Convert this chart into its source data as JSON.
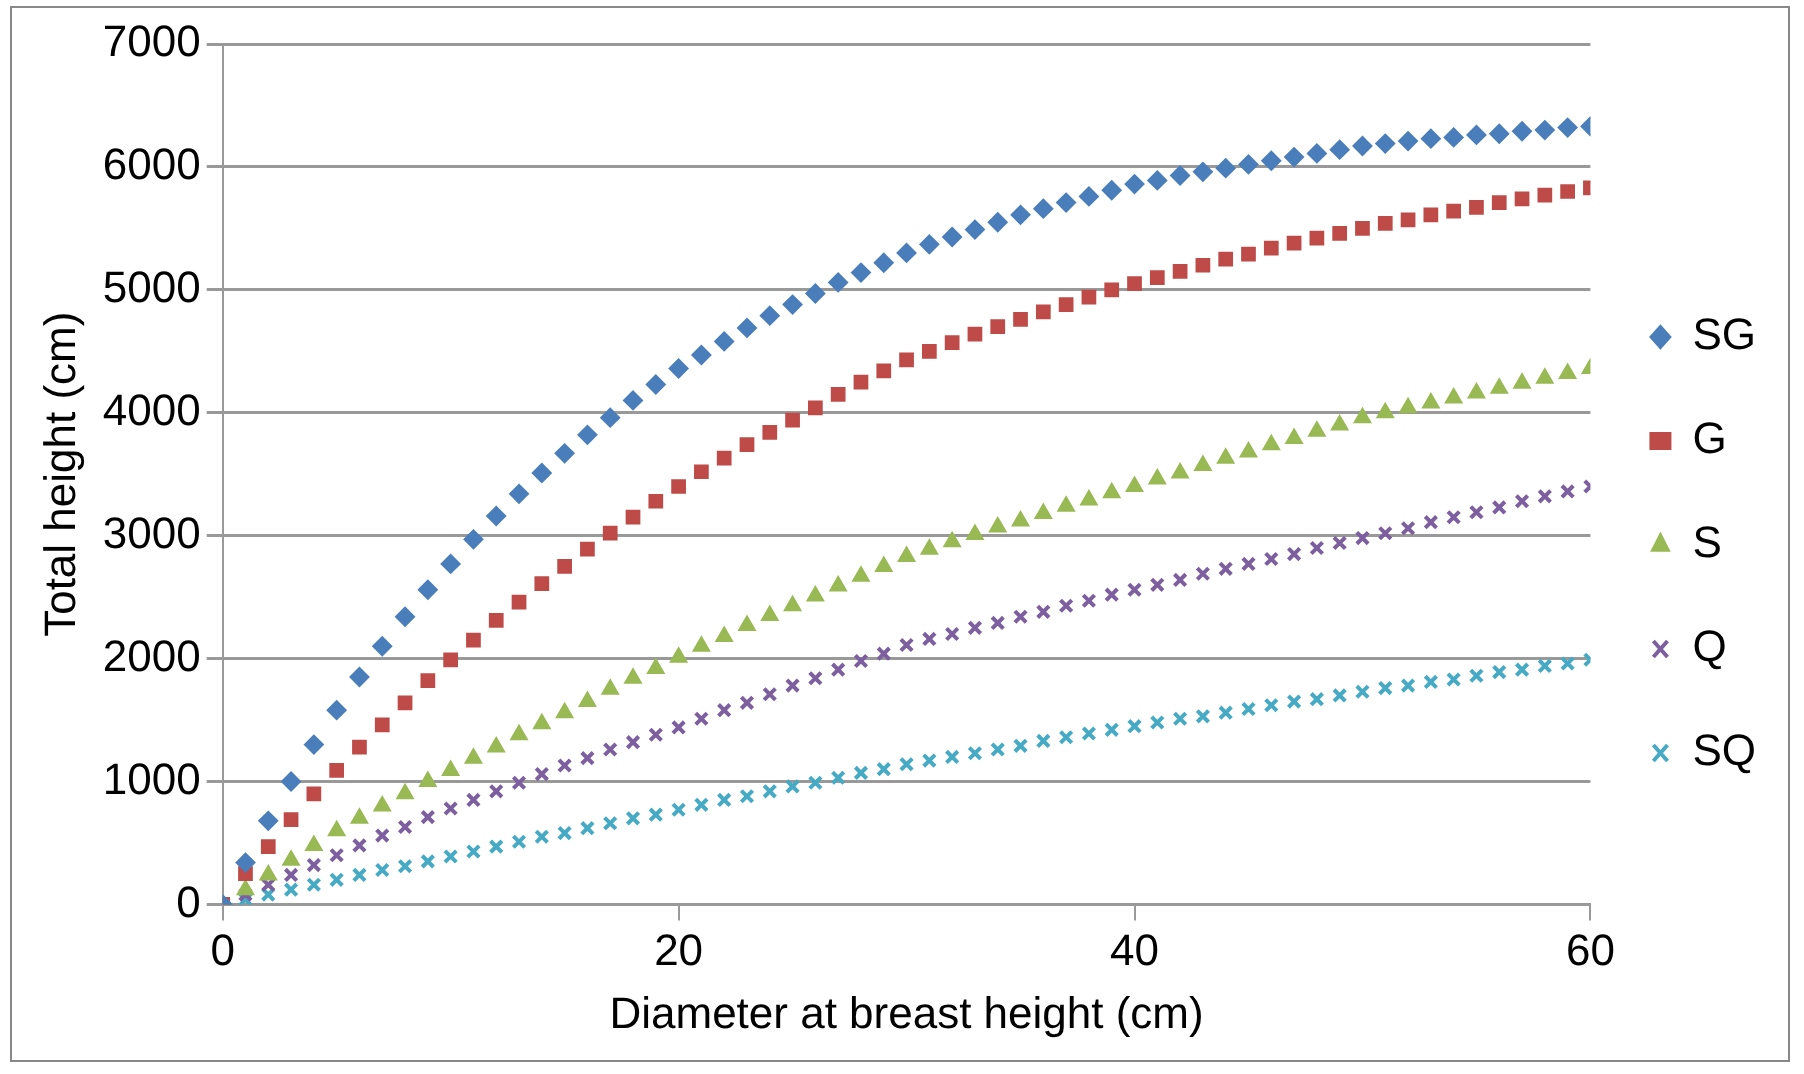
{
  "chart_data": {
    "type": "scatter",
    "xlabel": "Diameter at breast height (cm)",
    "ylabel": "Total height (cm)",
    "x": [
      0,
      1,
      2,
      3,
      4,
      5,
      6,
      7,
      8,
      9,
      10,
      11,
      12,
      13,
      14,
      15,
      16,
      17,
      18,
      19,
      20,
      21,
      22,
      23,
      24,
      25,
      26,
      27,
      28,
      29,
      30,
      31,
      32,
      33,
      34,
      35,
      36,
      37,
      38,
      39,
      40,
      41,
      42,
      43,
      44,
      45,
      46,
      47,
      48,
      49,
      50,
      51,
      52,
      53,
      54,
      55,
      56,
      57,
      58,
      59,
      60
    ],
    "xlim": [
      0,
      60
    ],
    "xticks": [
      0,
      20,
      40,
      60
    ],
    "ylim": [
      0,
      7000
    ],
    "yticks": [
      0,
      1000,
      2000,
      3000,
      4000,
      5000,
      6000,
      7000
    ],
    "grid": "y",
    "legend": "right",
    "series": [
      {
        "name": "SG",
        "color": "#4a7ebb",
        "marker": "diamond",
        "values": [
          0,
          340,
          680,
          1000,
          1300,
          1580,
          1850,
          2100,
          2340,
          2560,
          2770,
          2970,
          3160,
          3340,
          3510,
          3670,
          3820,
          3960,
          4100,
          4230,
          4360,
          4470,
          4580,
          4690,
          4790,
          4880,
          4970,
          5060,
          5140,
          5220,
          5300,
          5370,
          5430,
          5490,
          5550,
          5610,
          5660,
          5710,
          5760,
          5810,
          5860,
          5890,
          5930,
          5960,
          5990,
          6020,
          6050,
          6080,
          6110,
          6140,
          6170,
          6190,
          6210,
          6230,
          6240,
          6260,
          6270,
          6290,
          6300,
          6320,
          6330
        ]
      },
      {
        "name": "G",
        "color": "#be4b48",
        "marker": "square",
        "values": [
          0,
          250,
          470,
          690,
          900,
          1090,
          1280,
          1460,
          1640,
          1820,
          1990,
          2150,
          2310,
          2460,
          2610,
          2750,
          2890,
          3020,
          3150,
          3280,
          3400,
          3520,
          3630,
          3740,
          3840,
          3940,
          4040,
          4150,
          4250,
          4340,
          4430,
          4500,
          4570,
          4640,
          4700,
          4760,
          4820,
          4880,
          4940,
          5000,
          5050,
          5100,
          5150,
          5200,
          5250,
          5290,
          5340,
          5380,
          5420,
          5460,
          5500,
          5540,
          5570,
          5610,
          5640,
          5670,
          5710,
          5740,
          5770,
          5800,
          5830
        ]
      },
      {
        "name": "S",
        "color": "#98b954",
        "marker": "triangle",
        "values": [
          0,
          120,
          240,
          360,
          480,
          600,
          700,
          800,
          900,
          1000,
          1090,
          1190,
          1280,
          1380,
          1470,
          1560,
          1650,
          1750,
          1840,
          1920,
          2010,
          2100,
          2180,
          2270,
          2350,
          2430,
          2510,
          2590,
          2670,
          2750,
          2830,
          2890,
          2950,
          3010,
          3070,
          3120,
          3180,
          3240,
          3290,
          3350,
          3400,
          3460,
          3510,
          3570,
          3630,
          3680,
          3740,
          3790,
          3850,
          3900,
          3960,
          4000,
          4040,
          4080,
          4120,
          4160,
          4200,
          4240,
          4280,
          4320,
          4360
        ]
      },
      {
        "name": "Q",
        "color": "#7d5fa0",
        "marker": "cross",
        "values": [
          0,
          80,
          160,
          240,
          320,
          400,
          480,
          560,
          630,
          710,
          780,
          850,
          920,
          990,
          1060,
          1130,
          1190,
          1260,
          1320,
          1380,
          1440,
          1510,
          1580,
          1640,
          1710,
          1780,
          1840,
          1910,
          1980,
          2040,
          2110,
          2160,
          2200,
          2250,
          2290,
          2340,
          2380,
          2430,
          2470,
          2520,
          2560,
          2600,
          2640,
          2690,
          2730,
          2770,
          2810,
          2850,
          2900,
          2940,
          2980,
          3020,
          3060,
          3110,
          3150,
          3190,
          3230,
          3280,
          3320,
          3360,
          3400
        ]
      },
      {
        "name": "SQ",
        "color": "#46aac5",
        "marker": "cross",
        "values": [
          0,
          40,
          80,
          120,
          160,
          200,
          240,
          280,
          310,
          350,
          390,
          430,
          470,
          510,
          550,
          580,
          620,
          660,
          700,
          730,
          770,
          810,
          850,
          880,
          920,
          960,
          990,
          1030,
          1070,
          1100,
          1140,
          1170,
          1200,
          1230,
          1260,
          1290,
          1330,
          1360,
          1390,
          1420,
          1450,
          1480,
          1510,
          1530,
          1560,
          1590,
          1620,
          1650,
          1670,
          1700,
          1730,
          1760,
          1780,
          1810,
          1830,
          1860,
          1890,
          1910,
          1940,
          1960,
          1990
        ]
      }
    ]
  }
}
